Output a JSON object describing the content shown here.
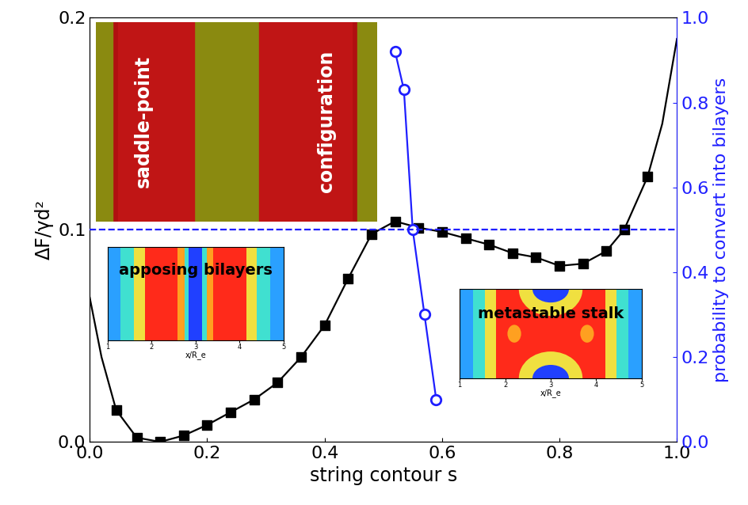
{
  "chart_data": {
    "type": "line",
    "x_label": "string contour s",
    "y_label": "ΔF/γd²",
    "y2_label": "probability to convert into bilayers",
    "xlim": [
      0.0,
      1.0
    ],
    "xticks": [
      0.0,
      0.2,
      0.4,
      0.6,
      0.8,
      1.0
    ],
    "ylim": [
      0.0,
      0.2
    ],
    "yticks": [
      0.0,
      0.1,
      0.2
    ],
    "y2lim": [
      0.0,
      1.0
    ],
    "y2ticks": [
      0.0,
      0.2,
      0.4,
      0.6,
      0.8,
      1.0
    ],
    "series": [
      {
        "type": "line",
        "color": "#000000",
        "line_style": "solid",
        "marker": "none",
        "x": [
          0.0,
          0.02,
          0.045,
          0.08,
          0.12,
          0.16,
          0.2,
          0.24,
          0.28,
          0.32,
          0.36,
          0.4,
          0.44,
          0.48,
          0.52,
          0.56,
          0.6,
          0.64,
          0.68,
          0.72,
          0.76,
          0.8,
          0.84,
          0.88,
          0.91,
          0.95,
          0.975,
          1.0
        ],
        "values": [
          0.068,
          0.04,
          0.015,
          0.002,
          0.0,
          0.003,
          0.008,
          0.014,
          0.02,
          0.028,
          0.04,
          0.055,
          0.077,
          0.098,
          0.104,
          0.101,
          0.099,
          0.096,
          0.093,
          0.089,
          0.087,
          0.083,
          0.084,
          0.09,
          0.1,
          0.125,
          0.15,
          0.19
        ]
      },
      {
        "type": "scatter",
        "color": "#000000",
        "marker": "square",
        "x": [
          0.045,
          0.08,
          0.12,
          0.16,
          0.2,
          0.24,
          0.28,
          0.32,
          0.36,
          0.4,
          0.44,
          0.48,
          0.52,
          0.56,
          0.6,
          0.64,
          0.68,
          0.72,
          0.76,
          0.8,
          0.84,
          0.88,
          0.91,
          0.95
        ],
        "values": [
          0.015,
          0.002,
          0.0,
          0.003,
          0.008,
          0.014,
          0.02,
          0.028,
          0.04,
          0.055,
          0.077,
          0.098,
          0.104,
          0.101,
          0.099,
          0.096,
          0.093,
          0.089,
          0.087,
          0.083,
          0.084,
          0.09,
          0.1,
          0.125
        ]
      },
      {
        "type": "line",
        "color": "#1f1fff",
        "line_style": "solid",
        "marker": "open_circle",
        "axis": "y2",
        "x": [
          0.52,
          0.535,
          0.55,
          0.57,
          0.59
        ],
        "values": [
          0.92,
          0.83,
          0.5,
          0.3,
          0.1
        ]
      },
      {
        "type": "line",
        "color": "#1f1fff",
        "line_style": "dashed",
        "marker": "none",
        "axis": "y2",
        "x": [
          0.0,
          1.0
        ],
        "values": [
          0.5,
          0.5
        ]
      }
    ],
    "annotations": {
      "saddle": [
        "saddle-point",
        "configuration"
      ],
      "apposing": "apposing bilayers",
      "stalk": "metastable stalk"
    },
    "insets": {
      "x_label": "x/R_e",
      "xlim": [
        1,
        5
      ],
      "xticks": [
        1,
        2,
        3,
        4,
        5
      ]
    }
  }
}
